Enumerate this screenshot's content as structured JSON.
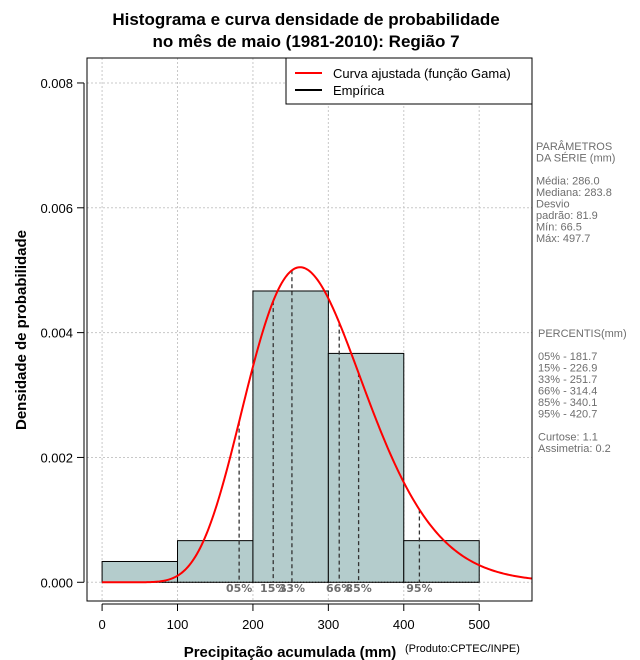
{
  "chart_data": {
    "type": "bar",
    "title_line1": "Histograma e curva densidade de probabilidade",
    "title_line2": "no mês de maio (1981-2010): Região 7",
    "xlabel": "Precipitação acumulada (mm)",
    "ylabel": "Densidade de probabilidade",
    "credit": "(Produto:CPTEC/INPE)",
    "xlim": [
      -20,
      570
    ],
    "ylim": [
      -0.0003,
      0.0084
    ],
    "x_ticks": [
      0,
      100,
      200,
      300,
      400,
      500
    ],
    "y_ticks": [
      0.0,
      0.002,
      0.004,
      0.006,
      0.008
    ],
    "y_tick_labels": [
      "0.000",
      "0.002",
      "0.004",
      "0.006",
      "0.008"
    ],
    "bins": [
      {
        "from": 0,
        "to": 100,
        "density": 0.000333
      },
      {
        "from": 100,
        "to": 200,
        "density": 0.000667
      },
      {
        "from": 200,
        "to": 300,
        "density": 0.004667
      },
      {
        "from": 300,
        "to": 400,
        "density": 0.003667
      },
      {
        "from": 400,
        "to": 500,
        "density": 0.000667
      }
    ],
    "gamma_fit": {
      "shape": 12.2,
      "rate": 0.04266
    },
    "legend": [
      {
        "label": "Curva ajustada (função Gama)",
        "color": "#ff0000"
      },
      {
        "label": "Empírica",
        "color": "#000000"
      }
    ],
    "percentiles": [
      {
        "label": "05%",
        "value": 181.7
      },
      {
        "label": "15%",
        "value": 226.9
      },
      {
        "label": "33%",
        "value": 251.7
      },
      {
        "label": "66%",
        "value": 314.4
      },
      {
        "label": "85%",
        "value": 340.1
      },
      {
        "label": "95%",
        "value": 420.7
      }
    ],
    "colors": {
      "bar_fill": "#b4cccc",
      "curve": "#ff0000",
      "grid": "#c8c8c8",
      "stats_text": "#6e6e6e"
    }
  },
  "stats_panel": {
    "lines": [
      "PARÂMETROS",
      " DA SÉRIE  (mm)",
      "",
      "Média:  286.0",
      "Mediana:  283.8",
      "Desvio",
      "padrão:  81.9",
      "Mín:  66.5",
      "Máx:  497.7"
    ]
  },
  "percentile_panel": {
    "lines": [
      " PERCENTIS(mm)",
      "",
      "05% -  181.7",
      "15% -  226.9",
      "33% -  251.7",
      "66% -  314.4",
      "85% -  340.1",
      "95% -  420.7",
      "",
      "Curtose:  1.1",
      "Assimetria:  0.2"
    ]
  }
}
